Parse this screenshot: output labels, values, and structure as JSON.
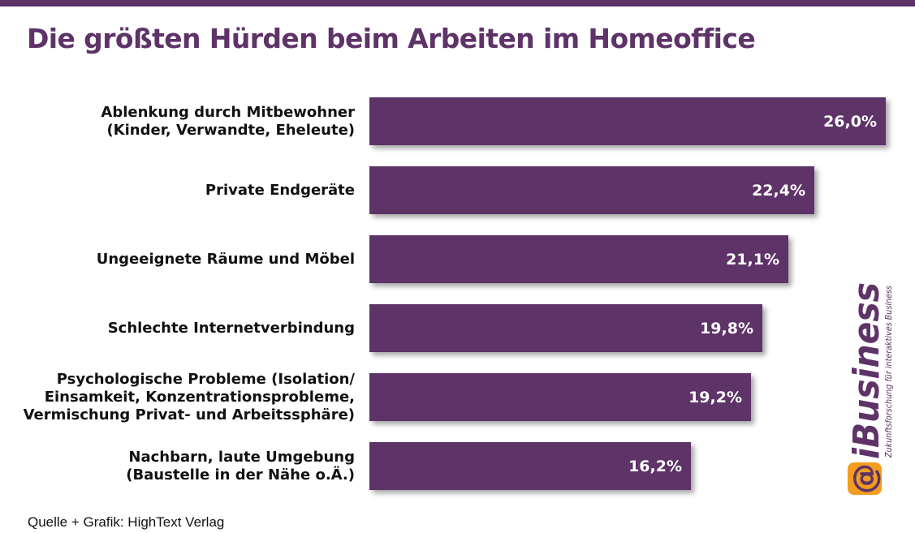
{
  "title": "Die größten Hürden beim Arbeiten im Homeoffice",
  "source": "Quelle + Grafik: HighText Verlag",
  "logo": {
    "symbol": "@",
    "name": "iBusiness",
    "tagline": "Zukunftsforschung für interaktives Business",
    "colors": {
      "primary": "#5e3368",
      "accent": "#f39c1f"
    }
  },
  "colors": {
    "bar": "#5e3368",
    "title": "#5e3368"
  },
  "chart_data": {
    "type": "bar",
    "orientation": "horizontal",
    "categories": [
      [
        "Ablenkung durch Mitbewohner",
        "(Kinder, Verwandte, Eheleute)"
      ],
      [
        "Private Endgeräte"
      ],
      [
        "Ungeeignete Räume und Möbel"
      ],
      [
        "Schlechte Internetverbindung"
      ],
      [
        "Psychologische Probleme (Isolation/",
        "Einsamkeit, Konzentrationsprobleme,",
        "Vermischung Privat- und Arbeitssphäre)"
      ],
      [
        "Nachbarn, laute Umgebung",
        "(Baustelle in der Nähe o.Ä.)"
      ]
    ],
    "values": [
      26.0,
      22.4,
      21.1,
      19.8,
      19.2,
      16.2
    ],
    "labels": [
      "26,0%",
      "22,4%",
      "21,1%",
      "19,8%",
      "19,2%",
      "16,2%"
    ],
    "xlim": [
      0,
      26.0
    ],
    "unit": "%",
    "grid": false,
    "legend": "none"
  }
}
